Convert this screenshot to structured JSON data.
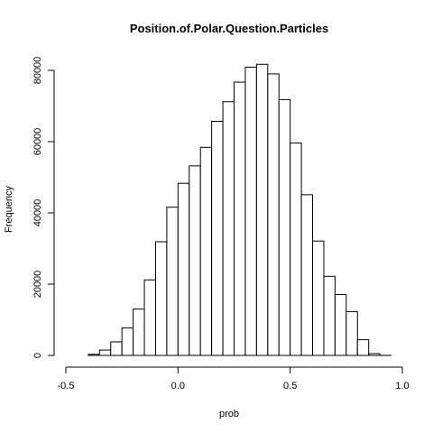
{
  "chart_data": {
    "type": "bar",
    "title": "Position.of.Polar.Question.Particles",
    "xlabel": "prob",
    "ylabel": "Frequency",
    "bin_width": 0.05,
    "x_ticks": [
      -0.5,
      0.0,
      0.5,
      1.0
    ],
    "x_tick_labels": [
      "-0.5",
      "0.0",
      "0.5",
      "1.0"
    ],
    "y_ticks": [
      0,
      20000,
      40000,
      60000,
      80000
    ],
    "y_tick_labels": [
      "0",
      "20000",
      "40000",
      "60000",
      "80000"
    ],
    "xlim": [
      -0.5,
      1.0
    ],
    "ylim": [
      0,
      82000
    ],
    "grid": false,
    "bins": [
      {
        "start": -0.4,
        "value": 300
      },
      {
        "start": -0.35,
        "value": 1500
      },
      {
        "start": -0.3,
        "value": 3800
      },
      {
        "start": -0.25,
        "value": 7700
      },
      {
        "start": -0.2,
        "value": 13000
      },
      {
        "start": -0.15,
        "value": 21200
      },
      {
        "start": -0.1,
        "value": 31900
      },
      {
        "start": -0.05,
        "value": 41600
      },
      {
        "start": 0.0,
        "value": 48300
      },
      {
        "start": 0.05,
        "value": 53200
      },
      {
        "start": 0.1,
        "value": 58400
      },
      {
        "start": 0.15,
        "value": 65700
      },
      {
        "start": 0.2,
        "value": 71200
      },
      {
        "start": 0.25,
        "value": 76700
      },
      {
        "start": 0.3,
        "value": 80900
      },
      {
        "start": 0.35,
        "value": 81700
      },
      {
        "start": 0.4,
        "value": 79000
      },
      {
        "start": 0.45,
        "value": 71800
      },
      {
        "start": 0.5,
        "value": 59600
      },
      {
        "start": 0.55,
        "value": 45100
      },
      {
        "start": 0.6,
        "value": 32100
      },
      {
        "start": 0.65,
        "value": 22200
      },
      {
        "start": 0.7,
        "value": 17100
      },
      {
        "start": 0.75,
        "value": 12300
      },
      {
        "start": 0.8,
        "value": 4400
      },
      {
        "start": 0.85,
        "value": 500
      },
      {
        "start": 0.9,
        "value": 20
      }
    ]
  }
}
